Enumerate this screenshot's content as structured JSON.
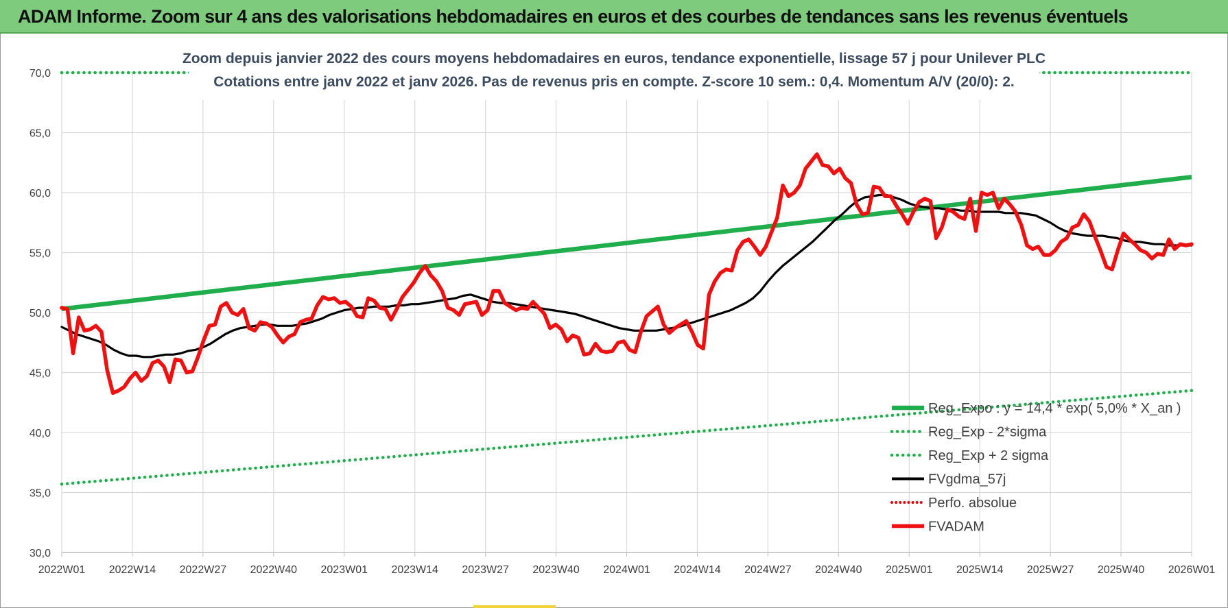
{
  "banner": {
    "title": "ADAM Informe. Zoom sur 4 ans des valorisations hebdomadaires en euros et des courbes de tendances sans les revenus éventuels"
  },
  "colors": {
    "banner": "#7ecb7e",
    "reg_expo": "#1fae4b",
    "sigma": "#1fae4b",
    "fvgdma": "#000000",
    "perfo": "#e01010",
    "fvadam": "#ee1111",
    "grid": "#d9d9d9"
  },
  "chart_data": {
    "type": "line",
    "title": "Zoom depuis janvier 2022 des cours moyens hebdomadaires en euros, tendance exponentielle, lissage 57 j pour Unilever PLC",
    "subtitle": "Cotations entre janv 2022 et janv 2026. Pas de revenus pris en compte. Z-score 10 sem.: 0,4. Momentum A/V (20/0): 2.",
    "xlabel": "",
    "ylabel": "",
    "ylim": [
      30,
      70
    ],
    "yticks": [
      "30,0",
      "35,0",
      "40,0",
      "45,0",
      "50,0",
      "55,0",
      "60,0",
      "65,0",
      "70,0"
    ],
    "xticks": [
      "2022W01",
      "2022W14",
      "2022W27",
      "2022W40",
      "2023W01",
      "2023W14",
      "2023W27",
      "2023W40",
      "2024W01",
      "2024W14",
      "2024W27",
      "2024W40",
      "2025W01",
      "2025W14",
      "2025W27",
      "2025W40",
      "2026W01"
    ],
    "grid": true,
    "legend_position": "bottom-right",
    "series": [
      {
        "name": "Reg_Expo : y = 14,4 * exp( 5,0% *  X_an )",
        "style": "solid-thick",
        "start": 50.3,
        "end": 61.3
      },
      {
        "name": "Reg_Exp - 2*sigma",
        "style": "dotted",
        "start": 35.7,
        "end": 43.5
      },
      {
        "name": "Reg_Exp + 2 sigma",
        "style": "dotted",
        "start": 70.0,
        "end": 70.0
      },
      {
        "name": "FVgdma_57j",
        "style": "solid",
        "values": [
          48.8,
          48.5,
          48.2,
          48.0,
          47.8,
          47.6,
          47.3,
          46.9,
          46.6,
          46.4,
          46.4,
          46.3,
          46.3,
          46.4,
          46.5,
          46.5,
          46.6,
          46.8,
          46.9,
          47.1,
          47.4,
          47.8,
          48.2,
          48.5,
          48.7,
          48.8,
          48.9,
          49.0,
          49.0,
          48.9,
          48.9,
          48.9,
          49.0,
          49.1,
          49.3,
          49.5,
          49.8,
          50.0,
          50.2,
          50.3,
          50.4,
          50.4,
          50.5,
          50.5,
          50.5,
          50.6,
          50.6,
          50.7,
          50.7,
          50.8,
          50.9,
          51.0,
          51.1,
          51.2,
          51.4,
          51.5,
          51.3,
          51.1,
          50.9,
          50.8,
          50.8,
          50.7,
          50.6,
          50.5,
          50.4,
          50.3,
          50.2,
          50.1,
          50.0,
          49.9,
          49.7,
          49.5,
          49.3,
          49.1,
          48.9,
          48.7,
          48.6,
          48.5,
          48.5,
          48.5,
          48.5,
          48.6,
          48.7,
          48.8,
          49.0,
          49.2,
          49.4,
          49.6,
          49.8,
          50.0,
          50.2,
          50.5,
          50.8,
          51.2,
          51.8,
          52.6,
          53.3,
          53.9,
          54.4,
          54.9,
          55.4,
          55.9,
          56.5,
          57.1,
          57.7,
          58.2,
          58.8,
          59.3,
          59.6,
          59.7,
          59.8,
          59.8,
          59.6,
          59.4,
          59.1,
          58.9,
          58.8,
          58.7,
          58.7,
          58.6,
          58.6,
          58.5,
          58.5,
          58.4,
          58.4,
          58.4,
          58.4,
          58.3,
          58.3,
          58.3,
          58.2,
          58.1,
          57.8,
          57.5,
          57.1,
          56.8,
          56.6,
          56.5,
          56.4,
          56.4,
          56.4,
          56.3,
          56.2,
          56.0,
          55.9,
          55.9,
          55.8,
          55.7,
          55.7,
          55.6,
          55.6,
          55.6,
          55.6
        ]
      },
      {
        "name": "Perfo. absolue",
        "style": "dotted-red",
        "values": []
      },
      {
        "name": "FVADAM",
        "style": "solid-thick-red",
        "values": [
          50.4,
          50.3,
          46.6,
          49.6,
          48.5,
          48.6,
          48.9,
          48.4,
          45.2,
          43.3,
          43.5,
          43.8,
          44.5,
          45.0,
          44.3,
          44.7,
          45.8,
          46.0,
          45.5,
          44.2,
          46.1,
          46.0,
          45.0,
          45.1,
          46.3,
          47.7,
          48.9,
          49.0,
          50.5,
          50.8,
          50.0,
          49.8,
          50.3,
          48.7,
          48.5,
          49.2,
          49.1,
          48.8,
          48.1,
          47.5,
          48.0,
          48.2,
          49.2,
          49.4,
          49.5,
          50.6,
          51.3,
          51.1,
          51.2,
          50.8,
          50.9,
          50.5,
          49.7,
          49.6,
          51.2,
          51.0,
          50.4,
          50.3,
          49.4,
          50.3,
          51.3,
          51.9,
          52.5,
          53.3,
          53.9,
          53.1,
          52.6,
          51.8,
          50.4,
          50.2,
          49.8,
          50.7,
          50.8,
          50.9,
          49.8,
          50.2,
          51.8,
          51.8,
          50.8,
          50.5,
          50.2,
          50.4,
          50.3,
          50.9,
          50.4,
          49.9,
          48.7,
          49.0,
          48.6,
          47.6,
          48.1,
          47.9,
          46.5,
          46.6,
          47.4,
          46.8,
          46.7,
          46.8,
          47.5,
          47.6,
          46.9,
          46.7,
          48.4,
          49.7,
          50.1,
          50.5,
          49.0,
          48.3,
          48.7,
          49.0,
          49.3,
          48.4,
          47.3,
          47.0,
          51.5,
          52.6,
          53.3,
          53.6,
          53.5,
          55.2,
          55.9,
          56.1,
          55.5,
          54.8,
          55.5,
          56.7,
          57.9,
          60.6,
          59.7,
          60.0,
          60.6,
          62.0,
          62.6,
          63.2,
          62.3,
          62.2,
          61.6,
          62.0,
          61.2,
          60.8,
          59.0,
          58.2,
          58.3,
          60.5,
          60.4,
          59.7,
          59.7,
          58.9,
          58.2,
          57.4,
          58.4,
          59.2,
          59.5,
          59.3,
          56.2,
          57.1,
          58.6,
          58.4,
          58.0,
          57.8,
          59.5,
          56.8,
          60.0,
          59.8,
          60.0,
          58.7,
          59.5,
          59.0,
          58.4,
          57.3,
          55.6,
          55.3,
          55.5,
          54.8,
          54.8,
          55.2,
          55.9,
          56.2,
          57.1,
          57.3,
          58.2,
          57.6,
          56.3,
          55.1,
          53.8,
          53.6,
          55.2,
          56.6,
          56.1,
          55.7,
          55.2,
          55.0,
          54.5,
          54.9,
          54.8,
          56.1,
          55.3,
          55.7,
          55.6,
          55.7
        ]
      }
    ]
  }
}
